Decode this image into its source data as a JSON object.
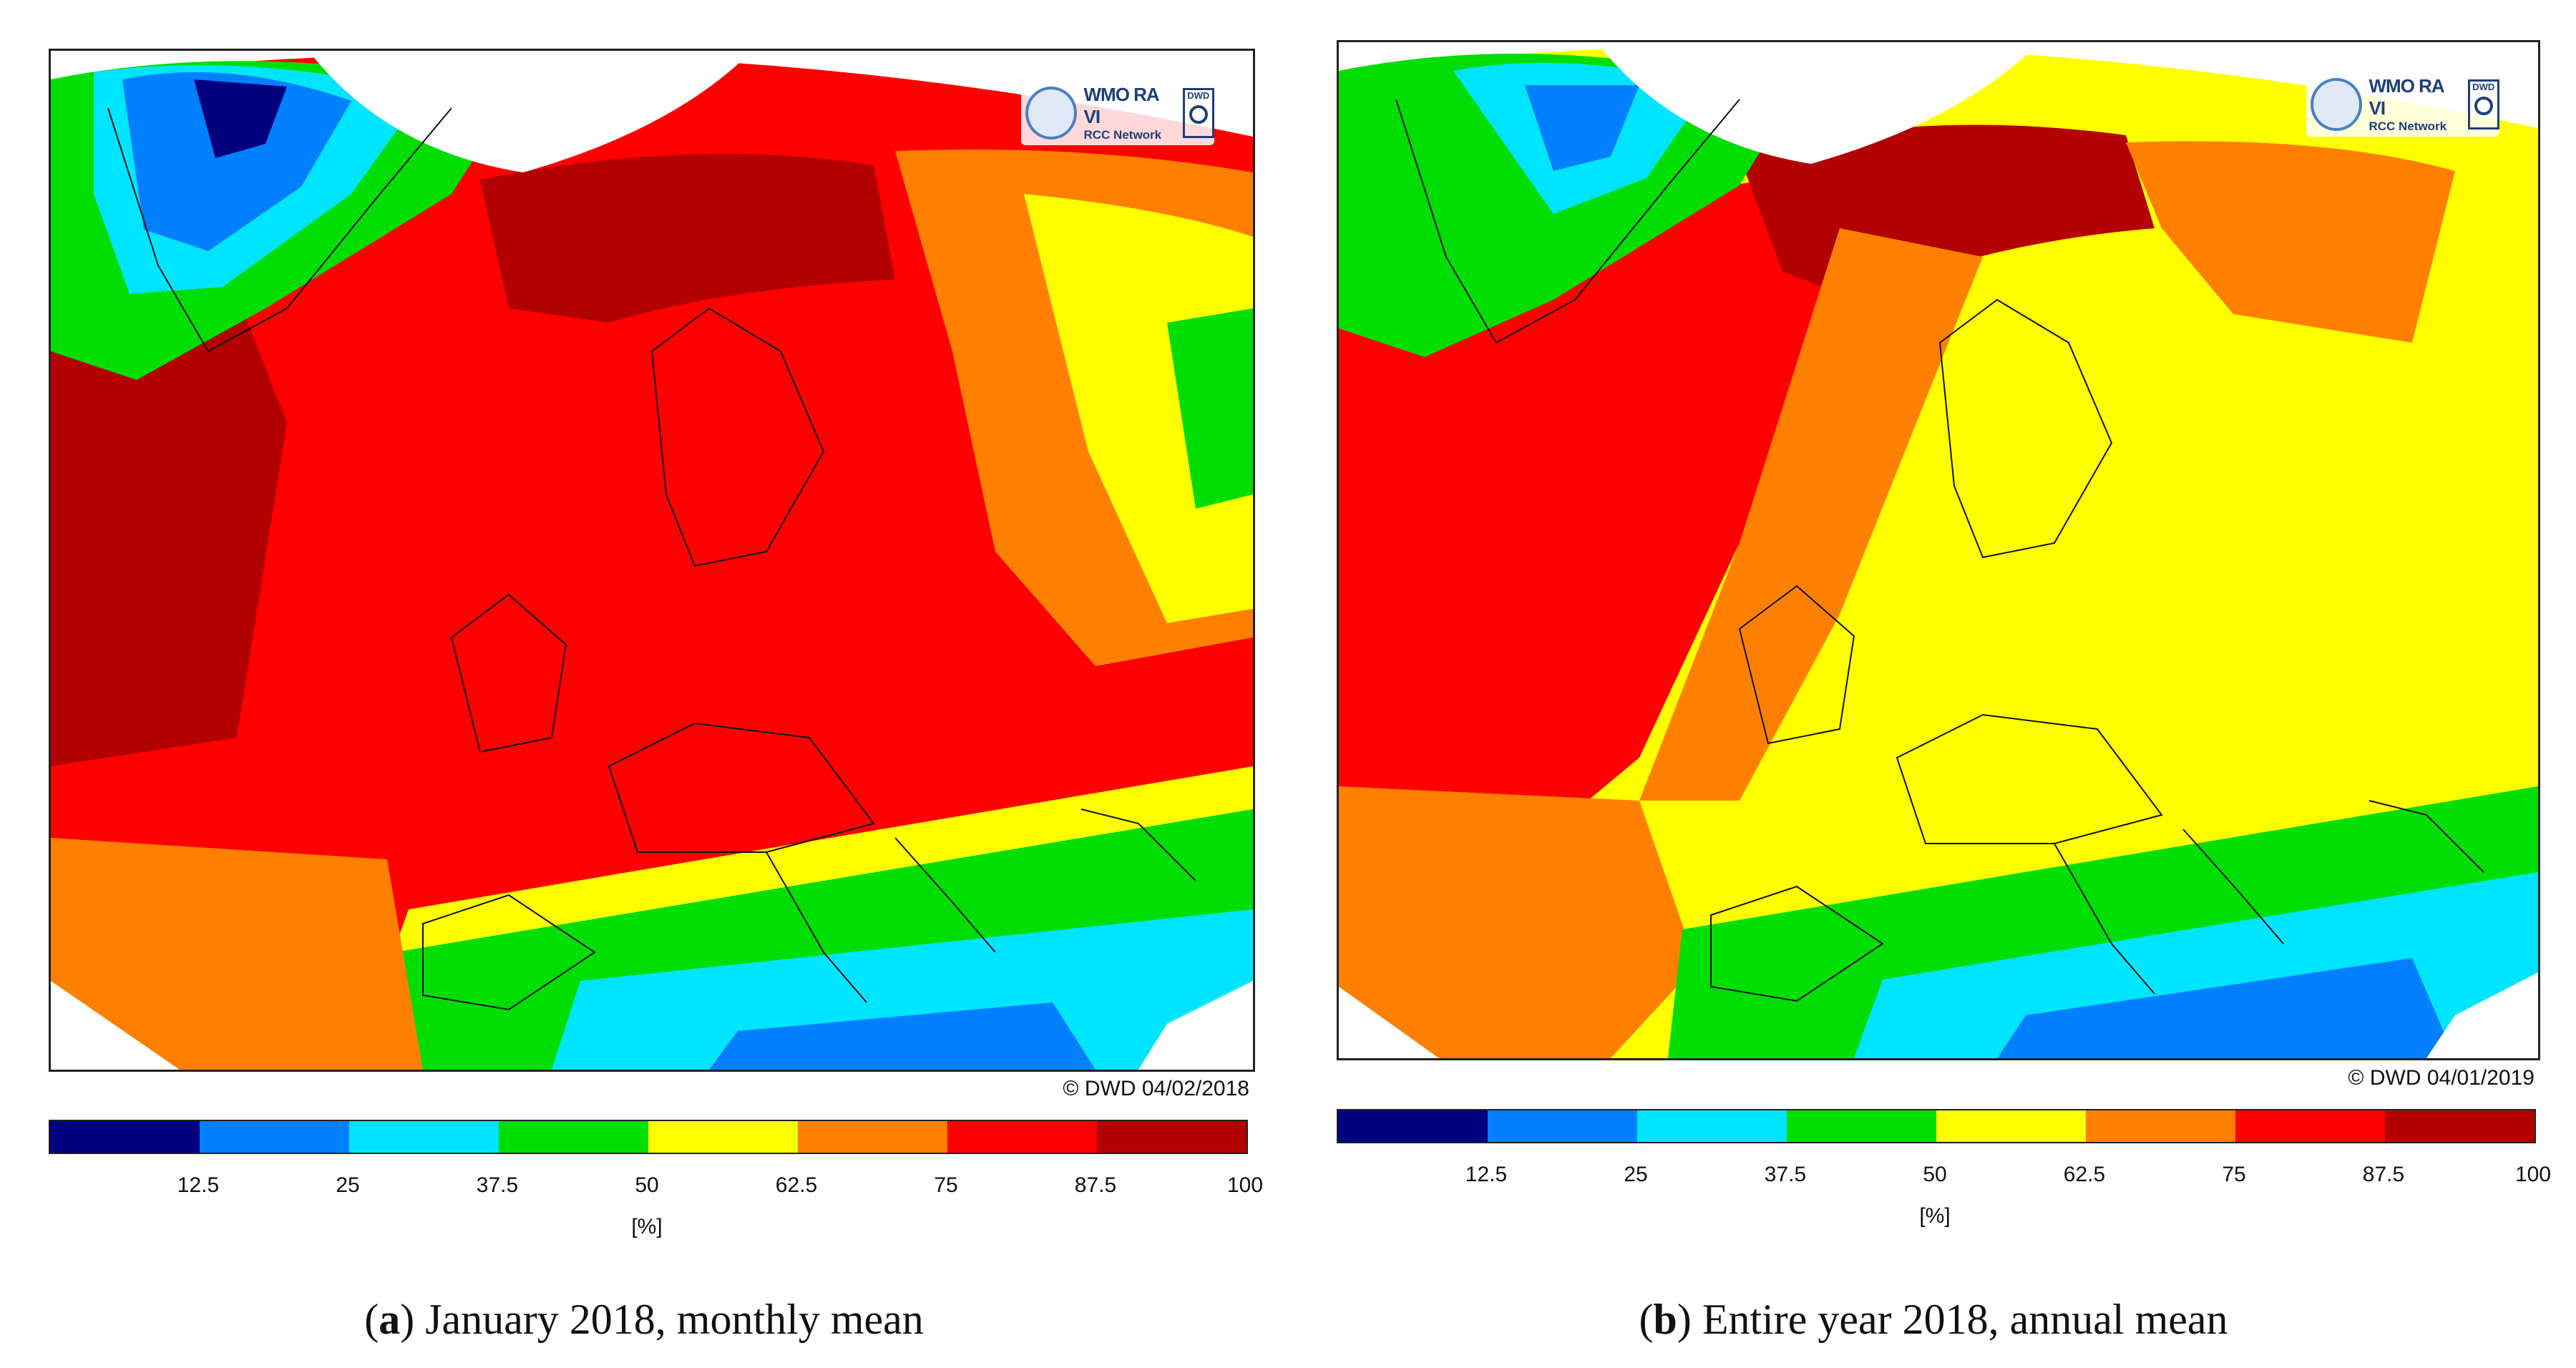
{
  "colors": [
    "#00007f",
    "#0080ff",
    "#00e5ff",
    "#00dd00",
    "#ffff00",
    "#ff8000",
    "#ff0000",
    "#b30000"
  ],
  "panels": [
    {
      "caption_letter": "a",
      "caption_text": "January 2018, monthly mean",
      "copyright": "© DWD 04/02/2018",
      "logo_title": "WMO RA VI",
      "logo_sub": "RCC Network",
      "logo_badge": "DWD",
      "colorbar_ticks": [
        "12.5",
        "25",
        "37.5",
        "50",
        "62.5",
        "75",
        "87.5",
        "100"
      ],
      "unit": "[%]"
    },
    {
      "caption_letter": "b",
      "caption_text": "Entire year 2018, annual mean",
      "copyright": "© DWD 04/01/2019",
      "logo_title": "WMO RA VI",
      "logo_sub": "RCC Network",
      "logo_badge": "DWD",
      "colorbar_ticks": [
        "12.5",
        "25",
        "37.5",
        "50",
        "62.5",
        "75",
        "87.5",
        "100"
      ],
      "unit": "[%]"
    }
  ]
}
